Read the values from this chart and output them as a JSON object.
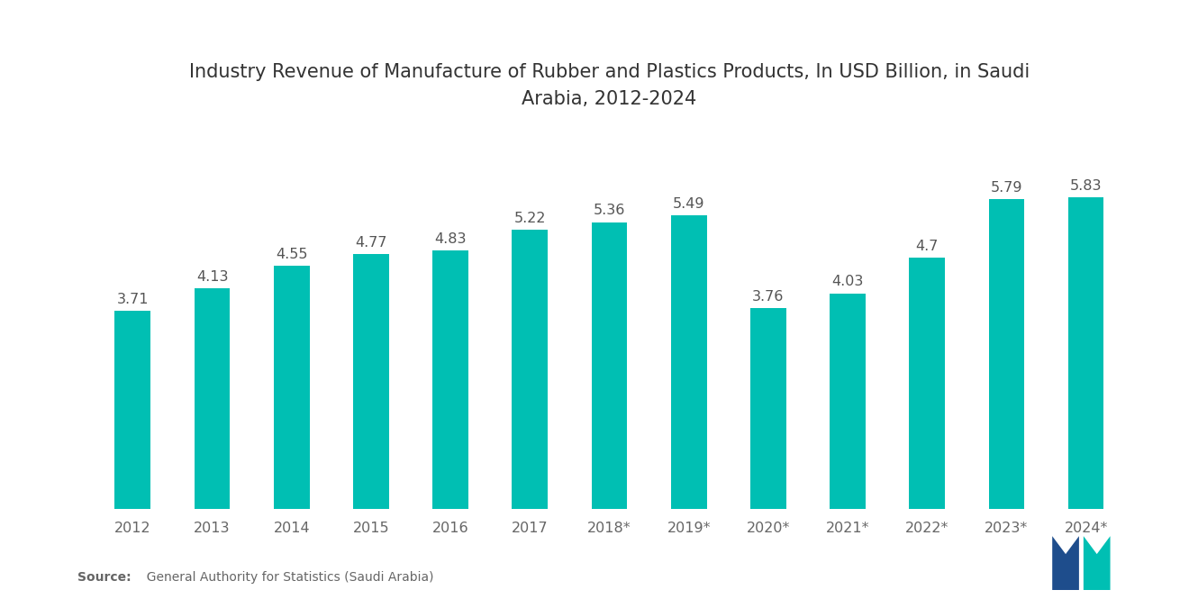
{
  "title": "Industry Revenue of Manufacture of Rubber and Plastics Products, In USD Billion, in Saudi\nArabia, 2012-2024",
  "categories": [
    "2012",
    "2013",
    "2014",
    "2015",
    "2016",
    "2017",
    "2018*",
    "2019*",
    "2020*",
    "2021*",
    "2022*",
    "2023*",
    "2024*"
  ],
  "values": [
    3.71,
    4.13,
    4.55,
    4.77,
    4.83,
    5.22,
    5.36,
    5.49,
    3.76,
    4.03,
    4.7,
    5.79,
    5.83
  ],
  "bar_color": "#00BFB3",
  "background_color": "#ffffff",
  "title_fontsize": 15,
  "label_fontsize": 11.5,
  "tick_fontsize": 11.5,
  "source_bold": "Source:",
  "source_normal": "  General Authority for Statistics (Saudi Arabia)",
  "ylim": [
    0,
    7.5
  ],
  "bar_width": 0.45
}
